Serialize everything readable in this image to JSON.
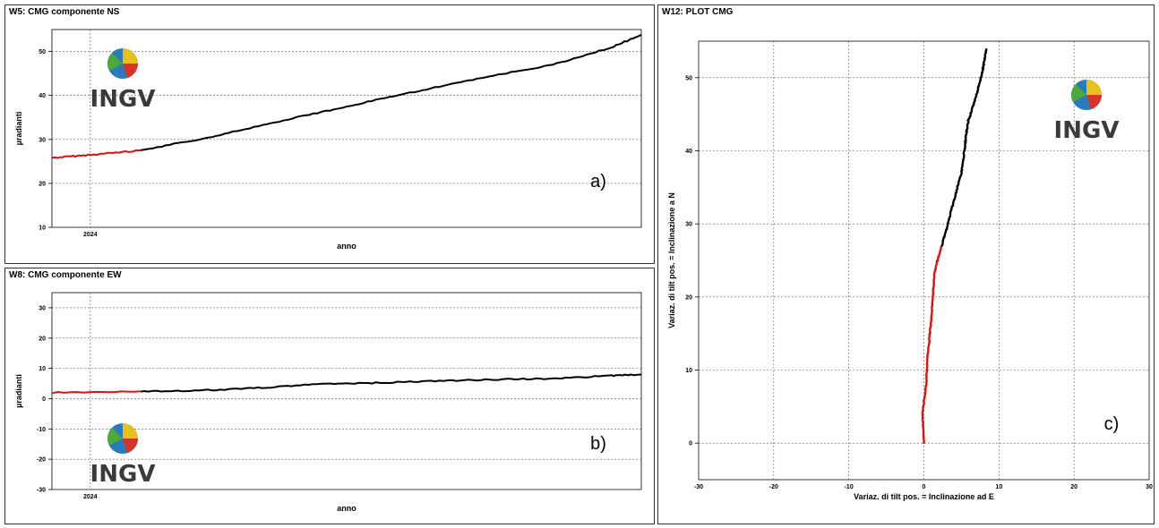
{
  "panels": {
    "ns": {
      "title": "W5: CMG componente NS",
      "tag": "a)"
    },
    "ew": {
      "title": "W8: CMG componente EW",
      "tag": "b)"
    },
    "xy": {
      "title": "W12: PLOT CMG",
      "tag": "c)"
    }
  },
  "logo": {
    "text": "INGV"
  },
  "colors": {
    "old": "#e01010",
    "new": "#000000",
    "grid": "#555555"
  },
  "chart_data": [
    {
      "type": "line",
      "title": "W5: CMG componente NS",
      "xlabel": "anno",
      "ylabel": "µradianti",
      "x_tick_labels": [
        "2024"
      ],
      "ylim": [
        10,
        55
      ],
      "yticks": [
        10,
        20,
        30,
        40,
        50
      ],
      "grid": true,
      "series": [
        {
          "color": "red",
          "t": [
            0,
            0.05,
            0.1,
            0.15
          ],
          "values": [
            25.8,
            26.3,
            26.9,
            27.5
          ]
        },
        {
          "color": "black",
          "t": [
            0.15,
            0.25,
            0.35,
            0.45,
            0.55,
            0.65,
            0.75,
            0.85,
            0.95,
            1.0
          ],
          "values": [
            27.5,
            30,
            33,
            36,
            39,
            41.8,
            44.5,
            47,
            51,
            53.8
          ]
        }
      ]
    },
    {
      "type": "line",
      "title": "W8: CMG componente EW",
      "xlabel": "anno",
      "ylabel": "µradianti",
      "x_tick_labels": [
        "2024"
      ],
      "ylim": [
        -30,
        35
      ],
      "yticks": [
        -30,
        -20,
        -10,
        0,
        10,
        20,
        30
      ],
      "grid": true,
      "series": [
        {
          "color": "red",
          "t": [
            0,
            0.15
          ],
          "values": [
            2.0,
            2.4
          ]
        },
        {
          "color": "black",
          "t": [
            0.15,
            0.25,
            0.35,
            0.45,
            0.55,
            0.65,
            0.75,
            0.85,
            0.95,
            1.0
          ],
          "values": [
            2.4,
            2.7,
            3.5,
            4.8,
            5.2,
            5.8,
            6.3,
            6.6,
            7.6,
            8.0
          ]
        }
      ]
    },
    {
      "type": "line",
      "title": "W12: PLOT CMG",
      "xlabel": "Variaz. di tilt pos. = Inclinazione ad E",
      "ylabel": "Variaz. di tilt pos. = Inclinazione a N",
      "xlim": [
        -30,
        30
      ],
      "ylim": [
        -5,
        55
      ],
      "xticks": [
        -30,
        -20,
        -10,
        0,
        10,
        20,
        30
      ],
      "yticks": [
        0,
        10,
        20,
        30,
        40,
        50
      ],
      "grid": true,
      "series": [
        {
          "color": "red",
          "x": [
            0,
            -0.2,
            0.3,
            0.5,
            0.9,
            1.2,
            1.4,
            1.8,
            2.4
          ],
          "y": [
            0,
            4,
            8,
            12,
            16,
            20,
            23,
            25,
            27
          ]
        },
        {
          "color": "black",
          "x": [
            2.4,
            3.2,
            4.2,
            5.0,
            5.4,
            5.6,
            5.9,
            6.5,
            7.1,
            7.6,
            8.0,
            8.3
          ],
          "y": [
            27,
            30,
            34,
            37,
            40,
            42,
            44,
            46,
            48,
            50,
            52,
            54
          ]
        }
      ]
    }
  ]
}
